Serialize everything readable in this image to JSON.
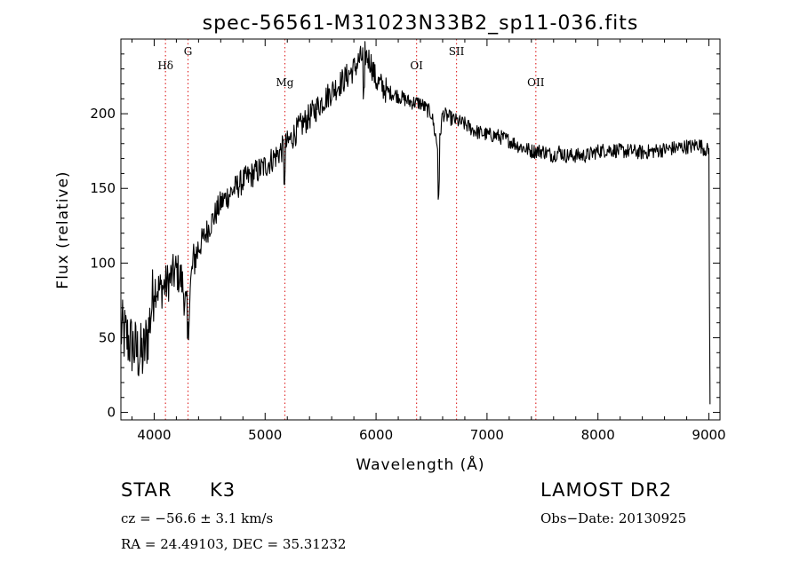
{
  "chart_data": {
    "type": "line",
    "title": "spec-56561-M31023N33B2_sp11-036.fits",
    "xlabel": "Wavelength (Å)",
    "ylabel": "Flux (relative)",
    "xlim": [
      3700,
      9100
    ],
    "ylim": [
      -5,
      250
    ],
    "xticks": [
      4000,
      5000,
      6000,
      7000,
      8000,
      9000
    ],
    "yticks": [
      0,
      50,
      100,
      150,
      200
    ],
    "grid": false,
    "line_color": "#000000",
    "marker_color": "#e03030",
    "series": [
      {
        "x": [
          3700,
          3750,
          3800,
          3850,
          3900,
          3950,
          4000,
          4050,
          4100,
          4150,
          4200,
          4250,
          4300,
          4350,
          4400,
          4500,
          4600,
          4700,
          4800,
          4900,
          5000,
          5100,
          5200,
          5300,
          5400,
          5500,
          5600,
          5700,
          5800,
          5850,
          5900,
          5950,
          6000,
          6100,
          6200,
          6300,
          6400,
          6500,
          6560,
          6600,
          6700,
          6800,
          6900,
          7000,
          7100,
          7200,
          7300,
          7400,
          7500,
          7600,
          7650,
          7700,
          7800,
          7900,
          8000,
          8100,
          8200,
          8300,
          8400,
          8500,
          8600,
          8700,
          8800,
          8850,
          8900,
          8950,
          9000,
          9010
        ],
        "y": [
          55,
          50,
          45,
          40,
          38,
          55,
          85,
          82,
          85,
          90,
          95,
          88,
          65,
          100,
          110,
          125,
          140,
          148,
          155,
          160,
          165,
          172,
          180,
          190,
          198,
          207,
          215,
          222,
          230,
          236,
          240,
          235,
          222,
          215,
          212,
          208,
          207,
          200,
          175,
          200,
          196,
          193,
          188,
          186,
          185,
          182,
          178,
          175,
          175,
          172,
          175,
          172,
          172,
          172,
          175,
          176,
          175,
          175,
          174,
          175,
          176,
          177,
          178,
          178,
          180,
          177,
          175,
          5
        ]
      }
    ],
    "line_markers": [
      {
        "label": "Hδ",
        "x": 4102
      },
      {
        "label": "G",
        "x": 4305
      },
      {
        "label": "Mg",
        "x": 5178
      },
      {
        "label": "OI",
        "x": 6365
      },
      {
        "label": "SII",
        "x": 6725
      },
      {
        "label": "OII",
        "x": 7440
      }
    ]
  },
  "info": {
    "class": "STAR",
    "subclass": "K3",
    "cz": "cz = −56.6 ± 3.1 km/s",
    "coords": "RA =  24.49103, DEC =  35.31232",
    "survey": "LAMOST DR2",
    "obs_date": "Obs−Date: 20130925"
  }
}
